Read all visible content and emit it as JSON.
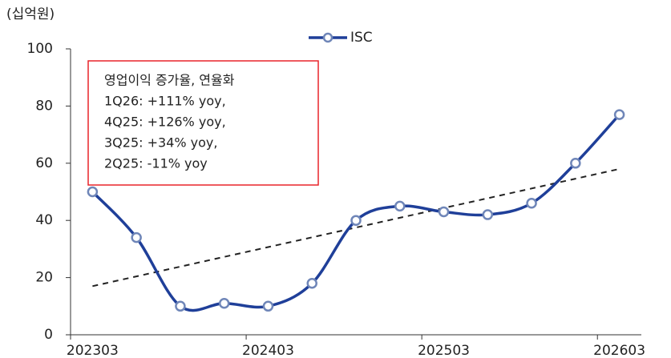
{
  "chart_data": {
    "type": "line",
    "unit_label": "(십억원)",
    "categories": [
      "202303",
      null,
      null,
      null,
      "202403",
      null,
      null,
      null,
      "202503",
      null,
      null,
      null,
      "202603"
    ],
    "series": [
      {
        "name": "ISC",
        "color": "#1f3f99",
        "values": [
          50,
          34,
          10,
          11,
          10,
          18,
          40,
          45,
          43,
          42,
          46,
          60,
          77
        ]
      }
    ],
    "trend_line": {
      "values": [
        17,
        58
      ],
      "color": "#222222"
    },
    "annotation": [
      "영업이익 증가율, 연율화",
      "1Q26: +111% yoy,",
      "4Q25: +126% yoy,",
      "3Q25: +34% yoy,",
      "2Q25: -11% yoy"
    ],
    "ylim": [
      0,
      100
    ],
    "yticks": [
      0,
      20,
      40,
      60,
      80,
      100
    ],
    "grid": false,
    "legend": "top"
  }
}
